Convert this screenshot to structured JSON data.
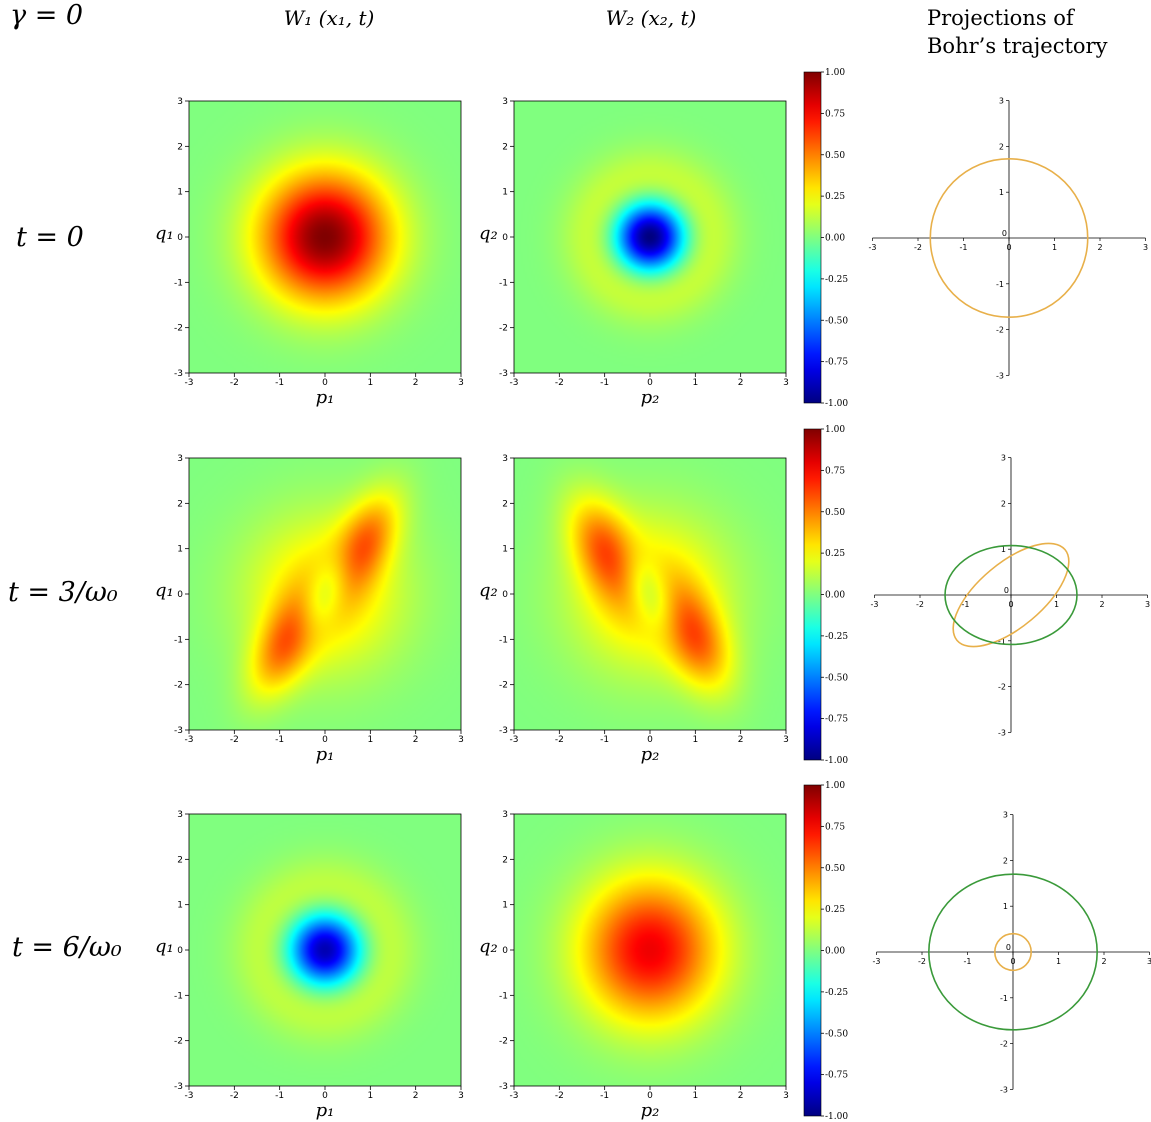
{
  "header": {
    "gamma_label": "γ = 0",
    "col1_title": "W₁ (x₁, t)",
    "col2_title": "W₂ (x₂, t)",
    "col3_title": "Projections of\nBohr’s trajectory"
  },
  "colors": {
    "orbit_1": "#e8b04a",
    "orbit_2": "#3a9a3a",
    "colormap": "jet"
  },
  "axes": {
    "heatmap_ticks": [
      "-3",
      "-2",
      "-1",
      "0",
      "1",
      "2",
      "3"
    ],
    "x_label_w1": "p₁",
    "x_label_w2": "p₂",
    "y_label_w1": "q₁",
    "y_label_w2": "q₂",
    "colorbar_ticks": [
      "1.00",
      "0.75",
      "0.50",
      "0.25",
      "0.00",
      "-0.25",
      "-0.50",
      "-0.75",
      "-1.00"
    ],
    "orbit_ticks": [
      "-3",
      "-2",
      "-1",
      "0",
      "1",
      "2",
      "3"
    ]
  },
  "chart_data": [
    {
      "row_label": "t = 0",
      "type": "heatmap",
      "panels": [
        {
          "name": "W1",
          "range": [
            -3,
            3
          ],
          "clim": [
            -1,
            1
          ],
          "components": [
            {
              "amp": 1.0,
              "cx": 0,
              "cy": 0,
              "sx": 1,
              "sy": 1,
              "rho": 0,
              "kind": "gauss"
            }
          ]
        },
        {
          "name": "W2",
          "range": [
            -3,
            3
          ],
          "clim": [
            -1,
            1
          ],
          "components": [
            {
              "amp": -1.0,
              "cx": 0,
              "cy": 0,
              "sx": 1,
              "sy": 1,
              "rho": 0,
              "kind": "fock1"
            }
          ]
        }
      ],
      "orbits": [
        {
          "series": 1,
          "rx": 1.73,
          "ry": 1.73,
          "angle": 0
        }
      ],
      "orbit_range": [
        -3,
        3
      ]
    },
    {
      "row_label": "t = 3/ω₀",
      "type": "heatmap",
      "panels": [
        {
          "name": "W1",
          "range": [
            -3,
            3
          ],
          "clim": [
            -1,
            1
          ],
          "components": [
            {
              "amp": 0.47,
              "cx": 0.85,
              "cy": 1.1,
              "sx": 0.55,
              "sy": 0.8,
              "rho": 0.55,
              "kind": "gauss"
            },
            {
              "amp": 0.47,
              "cx": -0.85,
              "cy": -1.1,
              "sx": 0.55,
              "sy": 0.8,
              "rho": 0.55,
              "kind": "gauss"
            },
            {
              "amp": 0.35,
              "cx": 0,
              "cy": 0,
              "sx": 1.2,
              "sy": 1.2,
              "rho": 0,
              "kind": "gauss"
            },
            {
              "amp": -0.37,
              "cx": 0,
              "cy": 0,
              "sx": 0.45,
              "sy": 0.7,
              "rho": 0.6,
              "kind": "gauss"
            }
          ]
        },
        {
          "name": "W2",
          "range": [
            -3,
            3
          ],
          "clim": [
            -1,
            1
          ],
          "components": [
            {
              "amp": 0.47,
              "cx": -1.0,
              "cy": 1.0,
              "sx": 0.55,
              "sy": 0.8,
              "rho": -0.45,
              "kind": "gauss"
            },
            {
              "amp": 0.47,
              "cx": 1.0,
              "cy": -1.0,
              "sx": 0.55,
              "sy": 0.8,
              "rho": -0.45,
              "kind": "gauss"
            },
            {
              "amp": 0.35,
              "cx": 0,
              "cy": 0,
              "sx": 1.2,
              "sy": 1.2,
              "rho": 0,
              "kind": "gauss"
            },
            {
              "amp": -0.33,
              "cx": 0,
              "cy": 0,
              "sx": 0.45,
              "sy": 0.65,
              "rho": -0.55,
              "kind": "gauss"
            }
          ]
        }
      ],
      "orbits": [
        {
          "series": 1,
          "rx": 1.55,
          "ry": 0.7,
          "angle": -40
        },
        {
          "series": 2,
          "rx": 1.45,
          "ry": 1.08,
          "angle": 0
        }
      ],
      "orbit_range": [
        -3,
        3
      ]
    },
    {
      "row_label": "t = 6/ω₀",
      "type": "heatmap",
      "panels": [
        {
          "name": "W1",
          "range": [
            -3,
            3
          ],
          "clim": [
            -1,
            1
          ],
          "components": [
            {
              "amp": -0.9,
              "cx": 0,
              "cy": 0,
              "sx": 1.05,
              "sy": 1.05,
              "rho": 0,
              "kind": "fock1"
            }
          ]
        },
        {
          "name": "W2",
          "range": [
            -3,
            3
          ],
          "clim": [
            -1,
            1
          ],
          "components": [
            {
              "amp": 0.78,
              "cx": 0,
              "cy": 0,
              "sx": 1.05,
              "sy": 1.1,
              "rho": 0,
              "kind": "gauss"
            }
          ]
        }
      ],
      "orbits": [
        {
          "series": 1,
          "rx": 0.4,
          "ry": 0.4,
          "angle": 0
        },
        {
          "series": 2,
          "rx": 1.85,
          "ry": 1.7,
          "angle": 0
        }
      ],
      "orbit_range": [
        -3,
        3
      ]
    }
  ]
}
